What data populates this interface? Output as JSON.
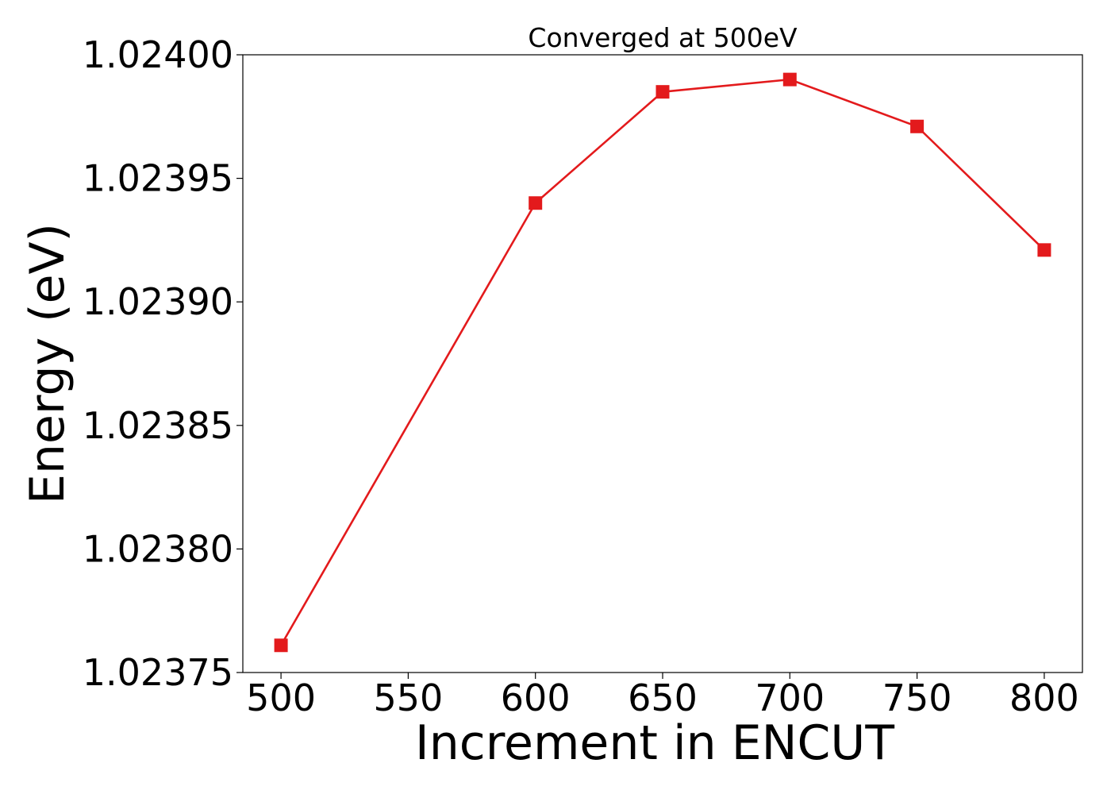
{
  "chart_data": {
    "type": "line",
    "title": "Converged at 500eV",
    "xlabel": "Increment in ENCUT",
    "ylabel": "Energy (eV)",
    "x": [
      500,
      600,
      650,
      700,
      750,
      800
    ],
    "series": [
      {
        "values": [
          1.023761,
          1.02394,
          1.023985,
          1.02399,
          1.023971,
          1.023921
        ],
        "color": "#e31a1c",
        "marker": "square"
      }
    ],
    "xticks": [
      500,
      550,
      600,
      650,
      700,
      750,
      800
    ],
    "xtick_labels": [
      "500",
      "550",
      "600",
      "650",
      "700",
      "750",
      "800"
    ],
    "yticks": [
      1.02375,
      1.0238,
      1.02385,
      1.0239,
      1.02395,
      1.024
    ],
    "ytick_labels": [
      "1.02375",
      "1.02380",
      "1.02385",
      "1.02390",
      "1.02395",
      "1.02400"
    ],
    "xlim": [
      485,
      815
    ],
    "ylim": [
      1.02375,
      1.024
    ],
    "grid": false,
    "legend": "none"
  }
}
